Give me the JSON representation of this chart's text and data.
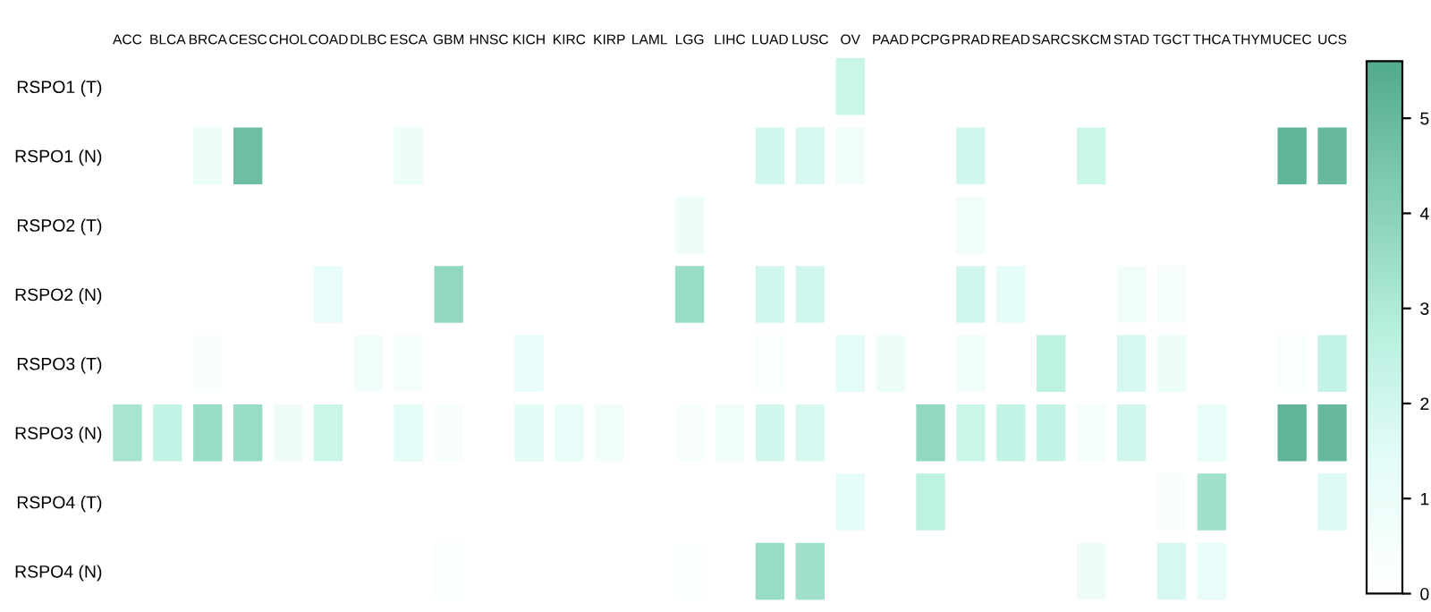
{
  "chart_data": {
    "type": "heatmap",
    "categories": [
      "ACC",
      "BLCA",
      "BRCA",
      "CESC",
      "CHOL",
      "COAD",
      "DLBC",
      "ESCA",
      "GBM",
      "HNSC",
      "KICH",
      "KIRC",
      "KIRP",
      "LAML",
      "LGG",
      "LIHC",
      "LUAD",
      "LUSC",
      "OV",
      "PAAD",
      "PCPG",
      "PRAD",
      "READ",
      "SARC",
      "SKCM",
      "STAD",
      "TGCT",
      "THCA",
      "THYM",
      "UCEC",
      "UCS"
    ],
    "y_categories": [
      "RSPO1 (T)",
      "RSPO1 (N)",
      "RSPO2 (T)",
      "RSPO2 (N)",
      "RSPO3 (T)",
      "RSPO3 (N)",
      "RSPO4 (T)",
      "RSPO4 (N)"
    ],
    "cells": [
      [
        null,
        null,
        null,
        null,
        null,
        null,
        null,
        null,
        null,
        null,
        null,
        null,
        null,
        null,
        null,
        null,
        null,
        null,
        2.2,
        null,
        null,
        null,
        null,
        null,
        null,
        null,
        null,
        null,
        null,
        null,
        null
      ],
      [
        null,
        null,
        1.0,
        4.8,
        null,
        null,
        null,
        1.0,
        null,
        null,
        null,
        null,
        null,
        null,
        null,
        null,
        2.0,
        1.8,
        0.8,
        null,
        null,
        2.0,
        null,
        null,
        2.2,
        null,
        null,
        null,
        null,
        5.2,
        5.0
      ],
      [
        null,
        null,
        null,
        null,
        null,
        null,
        null,
        null,
        null,
        null,
        null,
        null,
        null,
        null,
        1.0,
        null,
        null,
        null,
        null,
        null,
        null,
        0.7,
        null,
        null,
        null,
        null,
        null,
        null,
        null,
        null,
        null
      ],
      [
        null,
        null,
        null,
        null,
        null,
        1.2,
        null,
        null,
        3.8,
        null,
        null,
        null,
        null,
        null,
        3.6,
        null,
        2.0,
        2.0,
        null,
        null,
        null,
        2.0,
        1.3,
        null,
        null,
        0.8,
        0.5,
        null,
        null,
        null,
        null
      ],
      [
        null,
        null,
        0.4,
        null,
        null,
        null,
        0.8,
        0.5,
        null,
        null,
        1.2,
        null,
        null,
        null,
        null,
        null,
        0.3,
        null,
        1.4,
        1.0,
        null,
        0.8,
        null,
        2.6,
        null,
        1.8,
        1.0,
        null,
        null,
        0.3,
        2.4
      ],
      [
        3.2,
        2.4,
        3.6,
        3.6,
        0.9,
        2.2,
        null,
        1.4,
        0.4,
        null,
        1.5,
        1.2,
        0.8,
        null,
        0.4,
        0.8,
        2.0,
        1.8,
        null,
        null,
        3.8,
        2.2,
        2.4,
        2.4,
        0.6,
        2.0,
        null,
        1.2,
        null,
        5.2,
        5.0
      ],
      [
        null,
        null,
        null,
        null,
        null,
        null,
        null,
        null,
        null,
        null,
        null,
        null,
        null,
        null,
        null,
        null,
        null,
        null,
        1.3,
        null,
        2.6,
        null,
        null,
        null,
        null,
        null,
        0.4,
        3.4,
        null,
        null,
        1.6
      ],
      [
        null,
        null,
        null,
        null,
        null,
        null,
        null,
        null,
        0.3,
        null,
        null,
        null,
        null,
        null,
        0.2,
        null,
        3.6,
        3.4,
        null,
        null,
        null,
        null,
        null,
        null,
        0.9,
        null,
        1.8,
        1.2,
        null,
        null,
        null
      ]
    ],
    "clim": [
      0,
      5.6
    ],
    "cticks": [
      0,
      1,
      2,
      3,
      4,
      5
    ]
  }
}
